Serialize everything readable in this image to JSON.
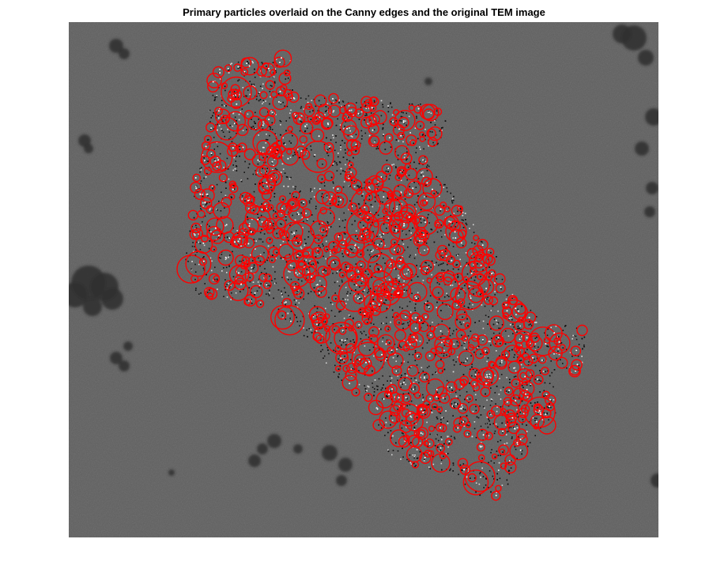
{
  "figure": {
    "title": "Primary particles overlaid on the Canny edges and the original TEM image"
  },
  "colors": {
    "figure_background": "#ffffff",
    "tem_background": "#5f5f5f",
    "edge_pixels": "#0f0f0f",
    "particle_circles": "#ff0000",
    "particle_highlight": "#ffffff",
    "secondary_aggregates": "#303030"
  }
}
